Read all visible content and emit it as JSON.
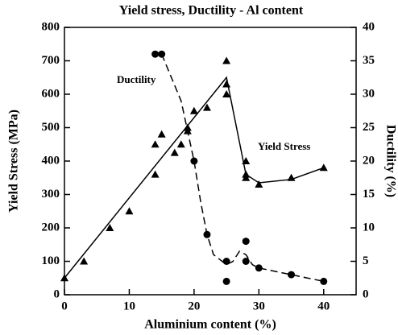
{
  "chart_data": {
    "type": "scatter",
    "title": "Yield stress, Ductility - Al content",
    "xlabel": "Aluminium content (%)",
    "ylabel": "Yield Stress (MPa)",
    "y2label": "Ductility (%)",
    "xlim": [
      0,
      45
    ],
    "xticks": [
      0,
      10,
      20,
      30,
      40
    ],
    "ylim": [
      0,
      800
    ],
    "yticks": [
      0,
      100,
      200,
      300,
      400,
      500,
      600,
      700,
      800
    ],
    "y2lim": [
      0,
      40
    ],
    "y2ticks": [
      0,
      5,
      10,
      15,
      20,
      25,
      30,
      35,
      40
    ],
    "series": [
      {
        "name": "Yield Stress",
        "color": "#000000",
        "marker": "triangle",
        "x": [
          0,
          3,
          7,
          10,
          14,
          14,
          15,
          17,
          18,
          19,
          19,
          20,
          22,
          25,
          25,
          25,
          28,
          28,
          28,
          30,
          35,
          40
        ],
        "values": [
          50,
          100,
          200,
          250,
          360,
          450,
          480,
          425,
          450,
          490,
          500,
          550,
          560,
          700,
          630,
          600,
          400,
          360,
          350,
          330,
          350,
          380
        ],
        "line_style": "solid",
        "line_x": [
          0,
          25,
          28,
          30,
          35,
          40
        ],
        "line_values": [
          50,
          650,
          360,
          335,
          345,
          380
        ]
      },
      {
        "name": "Ductility",
        "color": "#000000",
        "marker": "circle",
        "axis": "y2",
        "x": [
          14,
          15,
          20,
          22,
          25,
          25,
          28,
          28,
          30,
          35,
          40
        ],
        "values": [
          36,
          36,
          20,
          9,
          5,
          2,
          8,
          5,
          4,
          3,
          2
        ],
        "line_style": "dashed",
        "line_x": [
          15,
          18,
          20,
          21,
          22,
          23,
          25,
          26,
          27,
          28,
          29,
          30,
          35,
          40
        ],
        "line_values": [
          36,
          29,
          20,
          14,
          9,
          6,
          4.5,
          5,
          6.5,
          6,
          4.5,
          4,
          3,
          2
        ]
      }
    ]
  }
}
